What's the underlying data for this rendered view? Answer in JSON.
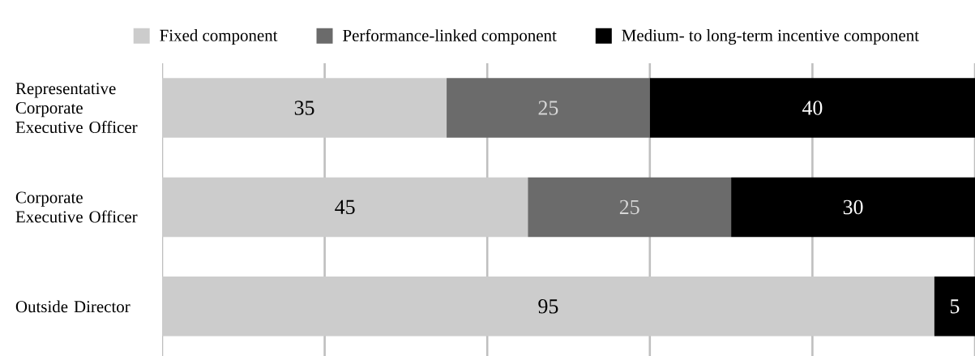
{
  "chart_data": {
    "type": "bar",
    "orientation": "horizontal",
    "stacked": true,
    "categories": [
      "Representative Corporate Executive Officer",
      "Corporate Executive Officer",
      "Outside Director"
    ],
    "series": [
      {
        "name": "Fixed component",
        "color": "#cccccc",
        "values": [
          35,
          45,
          95
        ]
      },
      {
        "name": "Performance-linked component",
        "color": "#6b6b6b",
        "values": [
          25,
          25,
          null
        ]
      },
      {
        "name": "Medium- to long-term incentive component",
        "color": "#000000",
        "values": [
          40,
          30,
          5
        ]
      }
    ],
    "xlim": [
      0,
      100
    ],
    "xticks": [
      {
        "value": 0,
        "label": null
      },
      {
        "value": 20,
        "label": null
      },
      {
        "value": 40,
        "label": null
      },
      {
        "value": 60,
        "label": null
      },
      {
        "value": 80,
        "label": null
      },
      {
        "value": 100,
        "label": null
      }
    ],
    "grid": "x",
    "legend": "top",
    "tick_labels": "y",
    "data_labels": true
  }
}
